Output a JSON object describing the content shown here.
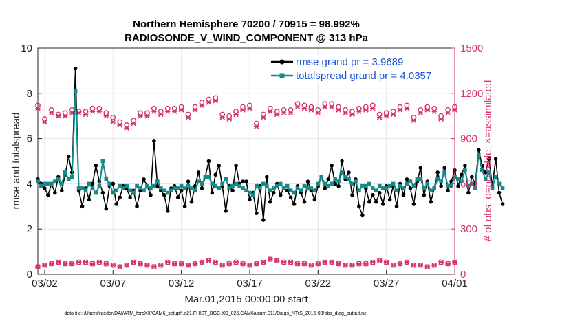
{
  "chart_data": {
    "type": "line",
    "title_line1": "Northern Hemisphere 70200 / 70915 = 98.992%",
    "title_line2": "RADIOSONDE_V_WIND_COMPONENT @ 313 hPa",
    "ylabel": "rmse and totalspread",
    "ylabel_right": "# of obs: o=possible; ×=assimilated",
    "xlabel": "Mar.01,2015 00:00:00 start",
    "footer": "data file: /Users/raeder/DAI/ATM_forcXX/CAM6_setup/f.e21.FHIST_BGC.f09_025.CAM6assim.011/Diags_NTrS_2015-03/obs_diag_output.nc",
    "xlim": [
      0.5,
      31.0
    ],
    "ylim": [
      0,
      10
    ],
    "ylim_right": [
      0,
      1500
    ],
    "xticks": [
      1,
      6,
      11,
      16,
      21,
      26,
      31
    ],
    "xtick_labels": [
      "03/02",
      "03/07",
      "03/12",
      "03/17",
      "03/22",
      "03/27",
      "04/01"
    ],
    "yticks": [
      "0",
      "2",
      "4",
      "6",
      "8",
      "10"
    ],
    "yticks_right": [
      "0",
      "300",
      "600",
      "900",
      "1200",
      "1500"
    ],
    "series": [
      {
        "name": "rmse grand pr = 3.9689",
        "color": "#000000",
        "x_start": 0.5,
        "x_step": 0.25,
        "values": [
          4.2,
          4.0,
          3.8,
          3.5,
          4.0,
          3.6,
          4.3,
          3.7,
          4.4,
          5.2,
          4.5,
          9.1,
          3.7,
          3.0,
          3.8,
          3.3,
          4.0,
          4.8,
          4.1,
          3.6,
          2.9,
          3.9,
          4.0,
          3.1,
          3.4,
          3.9,
          3.8,
          3.4,
          3.7,
          3.0,
          3.7,
          4.2,
          3.9,
          3.5,
          5.9,
          3.9,
          3.7,
          3.5,
          2.8,
          3.8,
          3.9,
          3.4,
          3.7,
          3.0,
          4.1,
          3.2,
          3.9,
          4.5,
          3.8,
          4.3,
          5.0,
          3.6,
          4.4,
          4.8,
          3.9,
          2.8,
          3.9,
          3.7,
          4.8,
          4.0,
          4.1,
          4.1,
          3.3,
          3.6,
          2.7,
          3.9,
          2.4,
          4.3,
          3.2,
          3.6,
          4.0,
          3.5,
          3.8,
          3.7,
          3.4,
          3.1,
          3.9,
          3.6,
          3.2,
          4.1,
          3.7,
          3.3,
          3.9,
          4.3,
          3.8,
          4.2,
          4.8,
          4.0,
          3.9,
          5.0,
          4.2,
          4.5,
          3.5,
          4.2,
          3.0,
          2.6,
          3.8,
          3.2,
          3.5,
          3.2,
          3.6,
          3.1,
          3.9,
          3.3,
          3.9,
          3.0,
          4.0,
          3.5,
          4.2,
          3.8,
          3.1,
          4.1,
          4.7,
          3.5,
          4.1,
          3.2,
          3.8,
          4.5,
          3.9,
          4.7,
          3.7,
          4.1,
          4.6,
          3.9,
          4.4,
          4.8,
          3.6,
          4.3,
          4.0,
          5.5,
          4.8,
          4.5,
          5.1,
          3.9,
          5.1,
          3.6,
          3.1
        ]
      },
      {
        "name": "totalspread grand pr = 4.0357",
        "color": "#148a8a",
        "x_start": 0.5,
        "x_step": 0.25,
        "values": [
          4.1,
          3.9,
          4.0,
          4.0,
          4.0,
          4.1,
          4.2,
          4.0,
          4.5,
          4.2,
          4.3,
          8.1,
          3.8,
          3.8,
          3.7,
          4.0,
          3.8,
          3.6,
          3.9,
          5.0,
          4.2,
          4.0,
          3.6,
          3.7,
          3.9,
          3.8,
          3.9,
          3.7,
          3.6,
          3.9,
          3.8,
          3.7,
          3.9,
          3.8,
          3.9,
          4.1,
          3.8,
          3.7,
          3.6,
          3.7,
          3.8,
          3.8,
          3.9,
          3.8,
          3.9,
          3.8,
          3.7,
          4.1,
          4.0,
          4.3,
          4.3,
          4.0,
          3.9,
          3.8,
          4.0,
          4.2,
          3.8,
          3.9,
          4.0,
          3.9,
          3.8,
          3.7,
          3.6,
          3.5,
          3.9,
          3.8,
          4.0,
          3.9,
          3.7,
          3.8,
          3.9,
          4.0,
          3.8,
          3.9,
          3.7,
          3.6,
          3.8,
          3.7,
          3.9,
          3.8,
          3.8,
          3.7,
          4.0,
          4.3,
          4.0,
          3.9,
          4.0,
          4.2,
          4.1,
          4.5,
          4.3,
          4.2,
          4.0,
          4.1,
          3.7,
          3.9,
          3.9,
          4.0,
          3.8,
          3.7,
          3.9,
          3.8,
          3.8,
          3.9,
          4.0,
          3.7,
          3.9,
          3.8,
          4.0,
          4.1,
          3.9,
          4.2,
          4.2,
          3.8,
          4.0,
          3.7,
          3.8,
          4.2,
          4.1,
          4.5,
          3.9,
          3.9,
          4.3,
          4.2,
          4.1,
          4.6,
          3.9,
          4.0,
          3.8,
          5.3,
          4.6,
          4.2,
          4.5,
          3.8,
          4.3,
          4.0,
          3.8
        ]
      }
    ],
    "obs_possible": {
      "color": "#d6336c",
      "x_start": 0.5,
      "x_step": 0.5,
      "values": [
        1120,
        1030,
        1090,
        1060,
        1070,
        1090,
        1080,
        1080,
        1100,
        1100,
        1070,
        1040,
        1010,
        990,
        1020,
        1070,
        1070,
        1100,
        1080,
        1100,
        1100,
        1110,
        1060,
        1110,
        1140,
        1160,
        1170,
        1060,
        1050,
        1080,
        1110,
        1120,
        1000,
        1060,
        1100,
        1080,
        1090,
        1090,
        1130,
        1120,
        1110,
        1090,
        1130,
        1130,
        1110,
        1090,
        1080,
        1100,
        1110,
        1120,
        1060,
        1070,
        1080,
        1110,
        1120,
        1040,
        1090,
        1110,
        1100,
        1050,
        1090,
        1110,
        1100
      ]
    },
    "obs_assimilated": {
      "color": "#d6336c",
      "x_start": 0.5,
      "x_step": 0.5,
      "values": [
        1100,
        1010,
        1070,
        1050,
        1050,
        1070,
        1070,
        1060,
        1080,
        1080,
        1050,
        1010,
        990,
        970,
        1000,
        1050,
        1050,
        1080,
        1060,
        1080,
        1080,
        1090,
        1040,
        1090,
        1120,
        1140,
        1150,
        1040,
        1030,
        1060,
        1090,
        1100,
        980,
        1040,
        1080,
        1060,
        1070,
        1070,
        1110,
        1100,
        1090,
        1070,
        1110,
        1110,
        1090,
        1070,
        1060,
        1080,
        1090,
        1100,
        1040,
        1050,
        1060,
        1090,
        1100,
        1020,
        1070,
        1090,
        1080,
        1030,
        1070,
        1090,
        1080
      ]
    },
    "obs_low": {
      "color": "#d6336c",
      "x_start": 0.5,
      "x_step": 0.5,
      "values": [
        50,
        60,
        70,
        80,
        70,
        70,
        80,
        80,
        70,
        80,
        70,
        60,
        50,
        60,
        80,
        70,
        60,
        50,
        60,
        80,
        70,
        70,
        60,
        70,
        80,
        90,
        80,
        60,
        70,
        80,
        70,
        60,
        70,
        80,
        100,
        90,
        80,
        80,
        70,
        70,
        60,
        70,
        80,
        80,
        70,
        60,
        60,
        70,
        70,
        80,
        90,
        80,
        60,
        70,
        80,
        60,
        60,
        50,
        60,
        80,
        70,
        80,
        0
      ]
    }
  }
}
